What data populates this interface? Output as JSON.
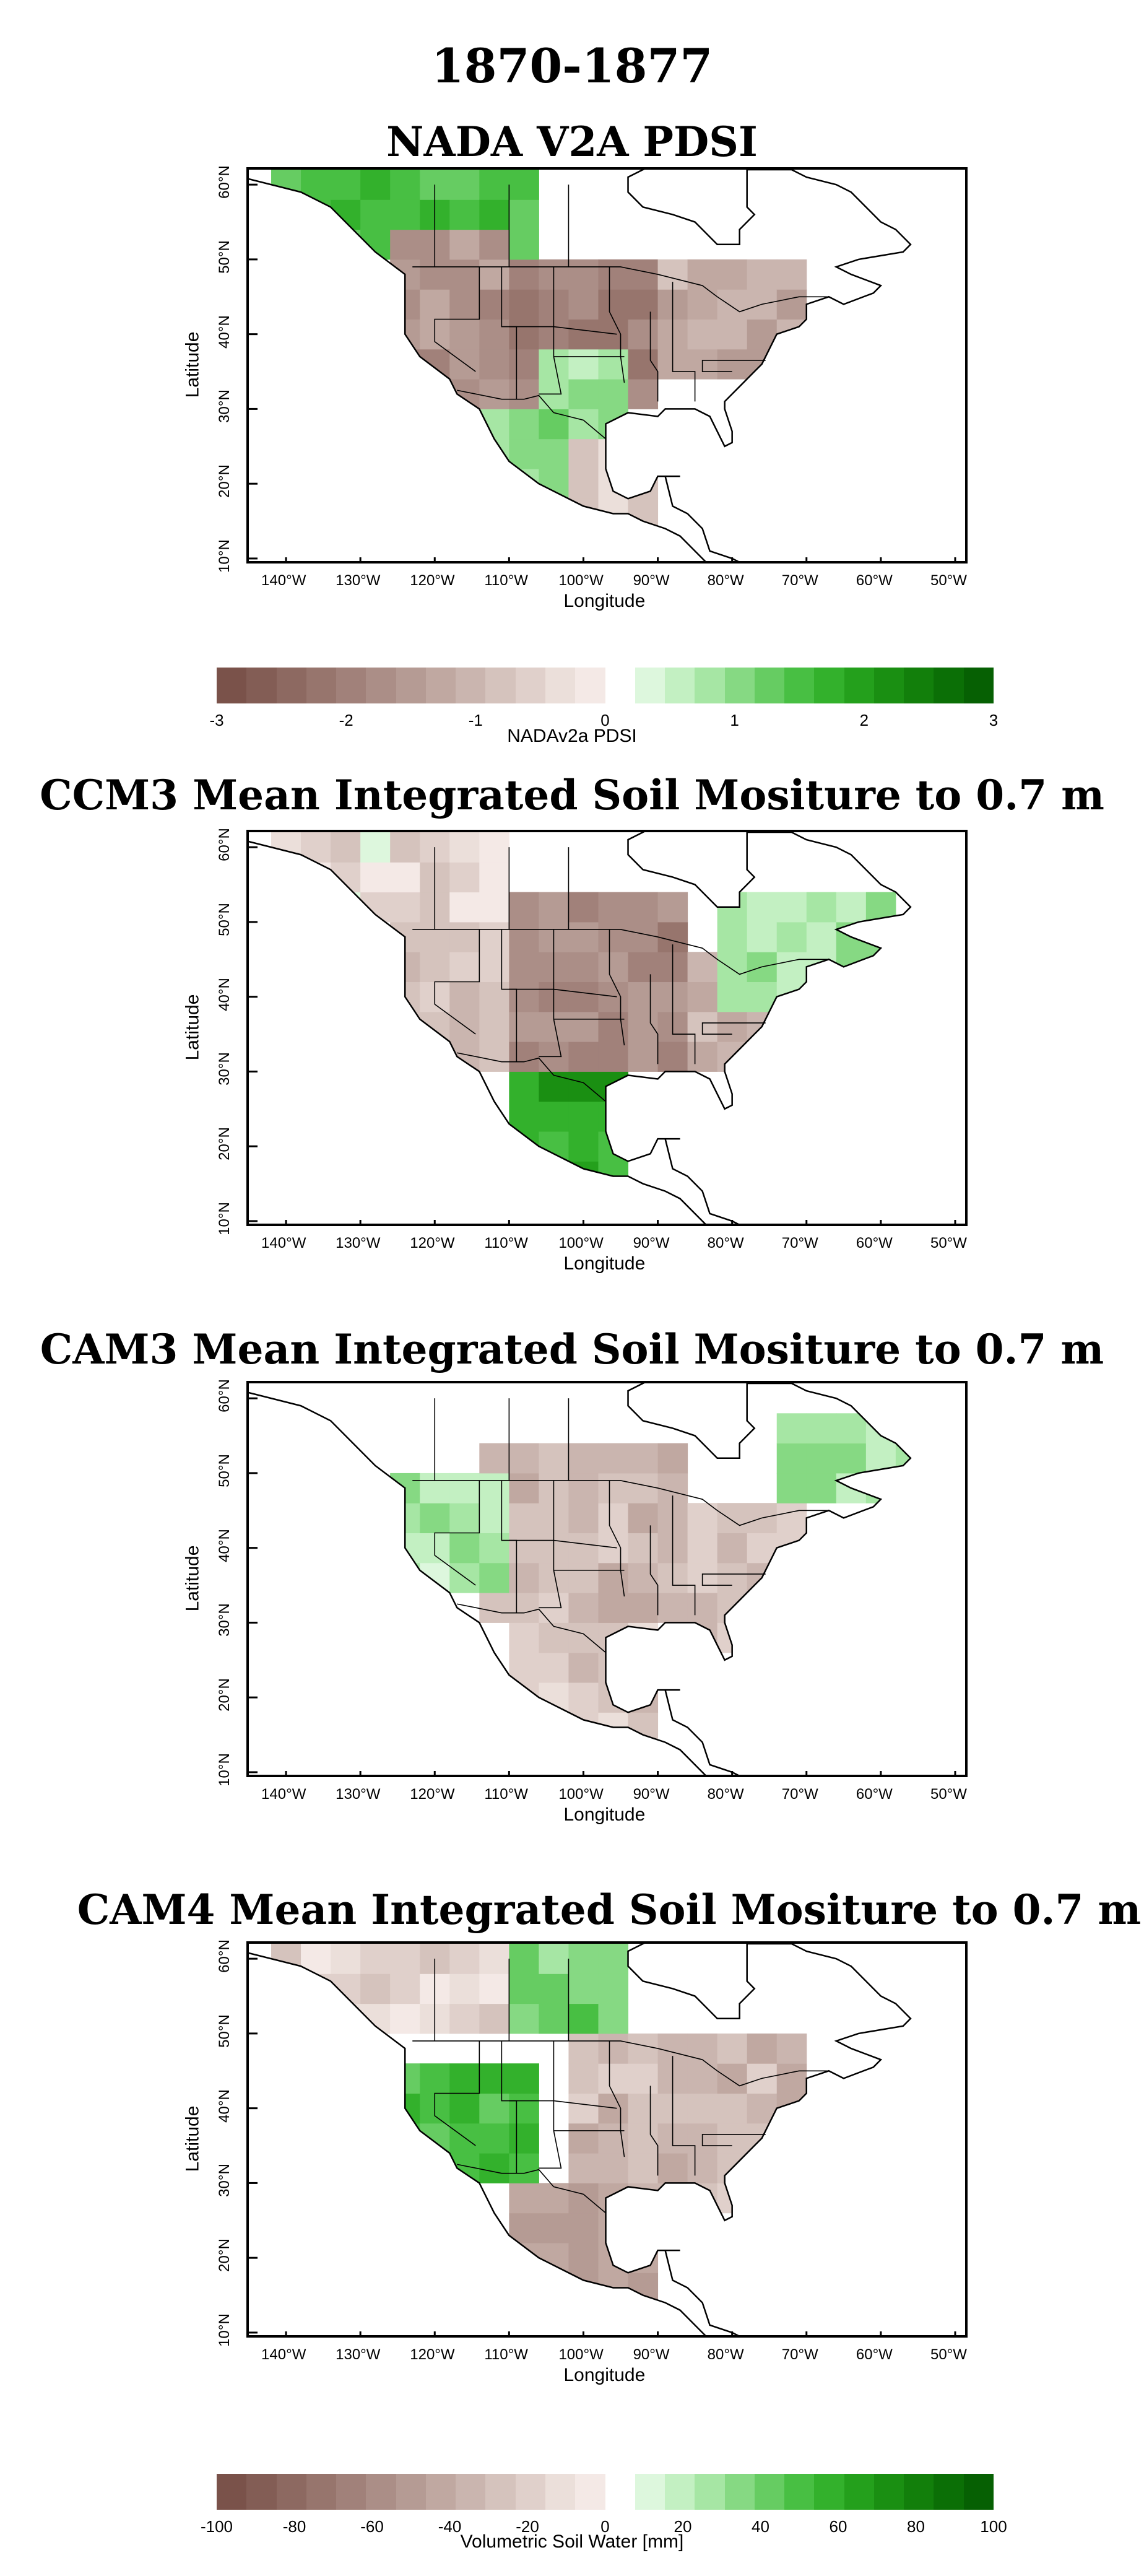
{
  "figure_title": "1870-1877",
  "panels": [
    {
      "title": "NADA V2A PDSI",
      "ylabel": "Latitude",
      "xlabel": "Longitude"
    },
    {
      "title": "CCM3 Mean Integrated Soil Mositure to 0.7 m",
      "ylabel": "Latitude",
      "xlabel": "Longitude"
    },
    {
      "title": "CAM3 Mean Integrated Soil Mositure to 0.7 m",
      "ylabel": "Latitude",
      "xlabel": "Longitude"
    },
    {
      "title": "CAM4 Mean Integrated Soil Mositure to 0.7 m",
      "ylabel": "Latitude",
      "xlabel": "Longitude"
    }
  ],
  "lon_ticks": [
    "140°W",
    "130°W",
    "120°W",
    "110°W",
    "100°W",
    "90°W",
    "80°W",
    "70°W",
    "60°W",
    "50°W"
  ],
  "lat_ticks": [
    "60°N",
    "50°N",
    "40°N",
    "30°N",
    "20°N",
    "10°N"
  ],
  "colorbar_pdsi": {
    "label": "NADAv2a PDSI",
    "ticks": [
      "-3",
      "-2",
      "-1",
      "0",
      "1",
      "2",
      "3"
    ],
    "min": -3,
    "max": 3
  },
  "colorbar_soil": {
    "label": "Volumetric Soil Water [mm]",
    "ticks": [
      "-100",
      "-80",
      "-60",
      "-40",
      "-20",
      "0",
      "20",
      "40",
      "60",
      "80",
      "100"
    ],
    "min": -100,
    "max": 100
  },
  "colors": {
    "brown_scale": [
      "#7a524a",
      "#835d55",
      "#8d6961",
      "#97756d",
      "#a1817a",
      "#ab8e87",
      "#b59b94",
      "#c0a8a1",
      "#cab5af",
      "#d5c3bd",
      "#e0d0cb",
      "#ebdfda",
      "#f4e9e6"
    ],
    "green_scale": [
      "#ddf7dd",
      "#c3f0c2",
      "#a6e6a4",
      "#86d983",
      "#66cc62",
      "#48bf43",
      "#33b12c",
      "#24a01c",
      "#1a8f12",
      "#127f0b",
      "#0b6f06",
      "#066003"
    ],
    "coast": "#000000"
  },
  "chart_data": [
    {
      "type": "heatmap",
      "title": "NADA V2A PDSI",
      "xlabel": "Longitude",
      "ylabel": "Latitude",
      "xlim": [
        -145,
        -48
      ],
      "ylim": [
        9,
        62
      ],
      "legend_label": "NADAv2a PDSI",
      "vmin": -3,
      "vmax": 3,
      "regions": [
        {
          "lon": [
            -140,
            -105
          ],
          "lat": [
            51,
            60
          ],
          "value": 1.4
        },
        {
          "lon": [
            -125,
            -110
          ],
          "lat": [
            30,
            55
          ],
          "value": -1.6
        },
        {
          "lon": [
            -110,
            -90
          ],
          "lat": [
            32,
            50
          ],
          "value": -2.0
        },
        {
          "lon": [
            -90,
            -70
          ],
          "lat": [
            33,
            50
          ],
          "value": -1.2
        },
        {
          "lon": [
            -105,
            -95
          ],
          "lat": [
            28,
            36
          ],
          "value": 0.6
        },
        {
          "lon": [
            -112,
            -102
          ],
          "lat": [
            20,
            30
          ],
          "value": 0.8
        },
        {
          "lon": [
            -100,
            -90
          ],
          "lat": [
            15,
            25
          ],
          "value": -0.6
        }
      ]
    },
    {
      "type": "heatmap",
      "title": "CCM3 Mean Integrated Soil Mositure to 0.7 m",
      "xlabel": "Longitude",
      "ylabel": "Latitude",
      "xlim": [
        -145,
        -48
      ],
      "ylim": [
        9,
        62
      ],
      "legend_label": "Volumetric Soil Water [mm]",
      "vmin": -100,
      "vmax": 100,
      "regions": [
        {
          "lon": [
            -110,
            -85
          ],
          "lat": [
            30,
            55
          ],
          "value": -60
        },
        {
          "lon": [
            -125,
            -110
          ],
          "lat": [
            30,
            55
          ],
          "value": -25
        },
        {
          "lon": [
            -85,
            -70
          ],
          "lat": [
            30,
            45
          ],
          "value": -35
        },
        {
          "lon": [
            -80,
            -60
          ],
          "lat": [
            40,
            55
          ],
          "value": 15
        },
        {
          "lon": [
            -108,
            -95
          ],
          "lat": [
            15,
            30
          ],
          "value": 60
        },
        {
          "lon": [
            -140,
            -110
          ],
          "lat": [
            50,
            62
          ],
          "value": -10
        }
      ]
    },
    {
      "type": "heatmap",
      "title": "CAM3 Mean Integrated Soil Mositure to 0.7 m",
      "xlabel": "Longitude",
      "ylabel": "Latitude",
      "xlim": [
        -145,
        -48
      ],
      "ylim": [
        9,
        62
      ],
      "legend_label": "Volumetric Soil Water [mm]",
      "vmin": -100,
      "vmax": 100,
      "regions": [
        {
          "lon": [
            -115,
            -85
          ],
          "lat": [
            30,
            55
          ],
          "value": -30
        },
        {
          "lon": [
            -85,
            -70
          ],
          "lat": [
            28,
            45
          ],
          "value": -25
        },
        {
          "lon": [
            -75,
            -55
          ],
          "lat": [
            45,
            58
          ],
          "value": 20
        },
        {
          "lon": [
            -125,
            -110
          ],
          "lat": [
            35,
            50
          ],
          "value": 15
        },
        {
          "lon": [
            -110,
            -90
          ],
          "lat": [
            15,
            30
          ],
          "value": -20
        }
      ]
    },
    {
      "type": "heatmap",
      "title": "CAM4 Mean Integrated Soil Mositure to 0.7 m",
      "xlabel": "Longitude",
      "ylabel": "Latitude",
      "xlim": [
        -145,
        -48
      ],
      "ylim": [
        9,
        62
      ],
      "legend_label": "Volumetric Soil Water [mm]",
      "vmin": -100,
      "vmax": 100,
      "regions": [
        {
          "lon": [
            -125,
            -105
          ],
          "lat": [
            30,
            45
          ],
          "value": 50
        },
        {
          "lon": [
            -120,
            -95
          ],
          "lat": [
            50,
            60
          ],
          "value": 30
        },
        {
          "lon": [
            -100,
            -70
          ],
          "lat": [
            28,
            50
          ],
          "value": -30
        },
        {
          "lon": [
            -110,
            -90
          ],
          "lat": [
            15,
            30
          ],
          "value": -45
        },
        {
          "lon": [
            -140,
            -110
          ],
          "lat": [
            50,
            62
          ],
          "value": -15
        }
      ]
    }
  ]
}
